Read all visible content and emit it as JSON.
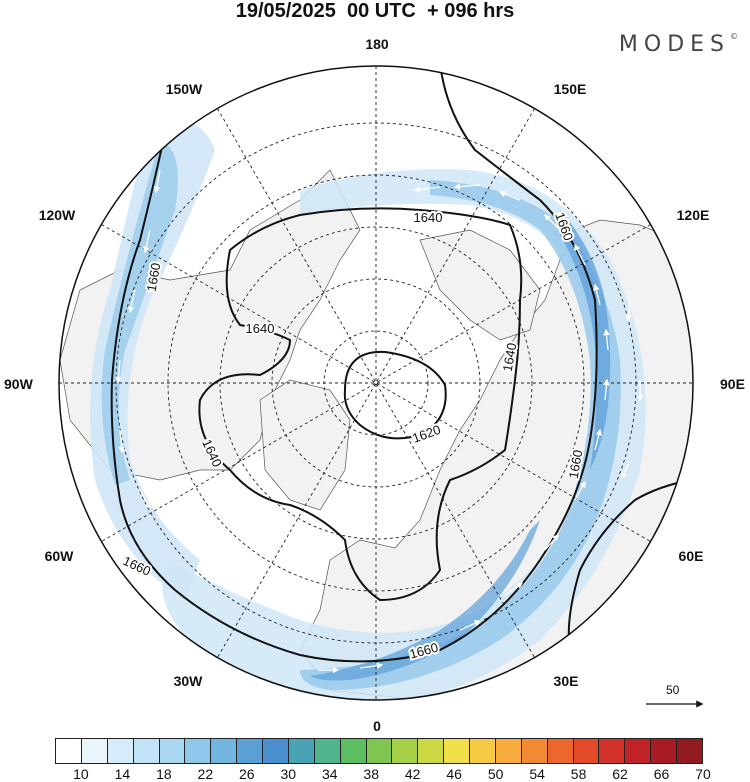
{
  "title": "19/05/2025  00 UTC  + 096 hrs",
  "brand": "MODES",
  "brand_mark": "©",
  "longitude_labels": {
    "north": "180",
    "south": "0",
    "east": "90E",
    "west": "90W",
    "ne_upper": "150E",
    "ne_lower": "120E",
    "se_upper": "60E",
    "se_lower": "30E",
    "nw_upper": "150W",
    "nw_lower": "120W",
    "sw_upper": "60W",
    "sw_lower": "30W"
  },
  "contour_labels": [
    "1640",
    "1660",
    "1660",
    "1640",
    "1640",
    "1640",
    "1620",
    "1660",
    "1660",
    "1660"
  ],
  "reference_vector": {
    "value": "50"
  },
  "colorbar": {
    "colors": [
      "#ffffff",
      "#eaf4fb",
      "#d6ecf8",
      "#c2e3f5",
      "#a9d6f0",
      "#8ec7ea",
      "#73b5e1",
      "#5aa0d6",
      "#4a90cf",
      "#4aa3b5",
      "#4fb58c",
      "#5bbf5f",
      "#7ec64f",
      "#a6cf48",
      "#cbd945",
      "#f0e14a",
      "#f7c944",
      "#f6ab3c",
      "#f28a34",
      "#ec672d",
      "#e24a2a",
      "#d23229",
      "#bf2227",
      "#a81b24",
      "#911b21"
    ],
    "labels": [
      "10",
      "14",
      "18",
      "22",
      "26",
      "30",
      "34",
      "38",
      "42",
      "46",
      "50",
      "54",
      "58",
      "62",
      "66",
      "70"
    ]
  },
  "colors": {
    "land": "#f2f2f2",
    "jet_weak": "#cfe6f6",
    "jet_mid": "#9ccbec",
    "jet_strong": "#5d9fd8",
    "contour": "#111111"
  }
}
